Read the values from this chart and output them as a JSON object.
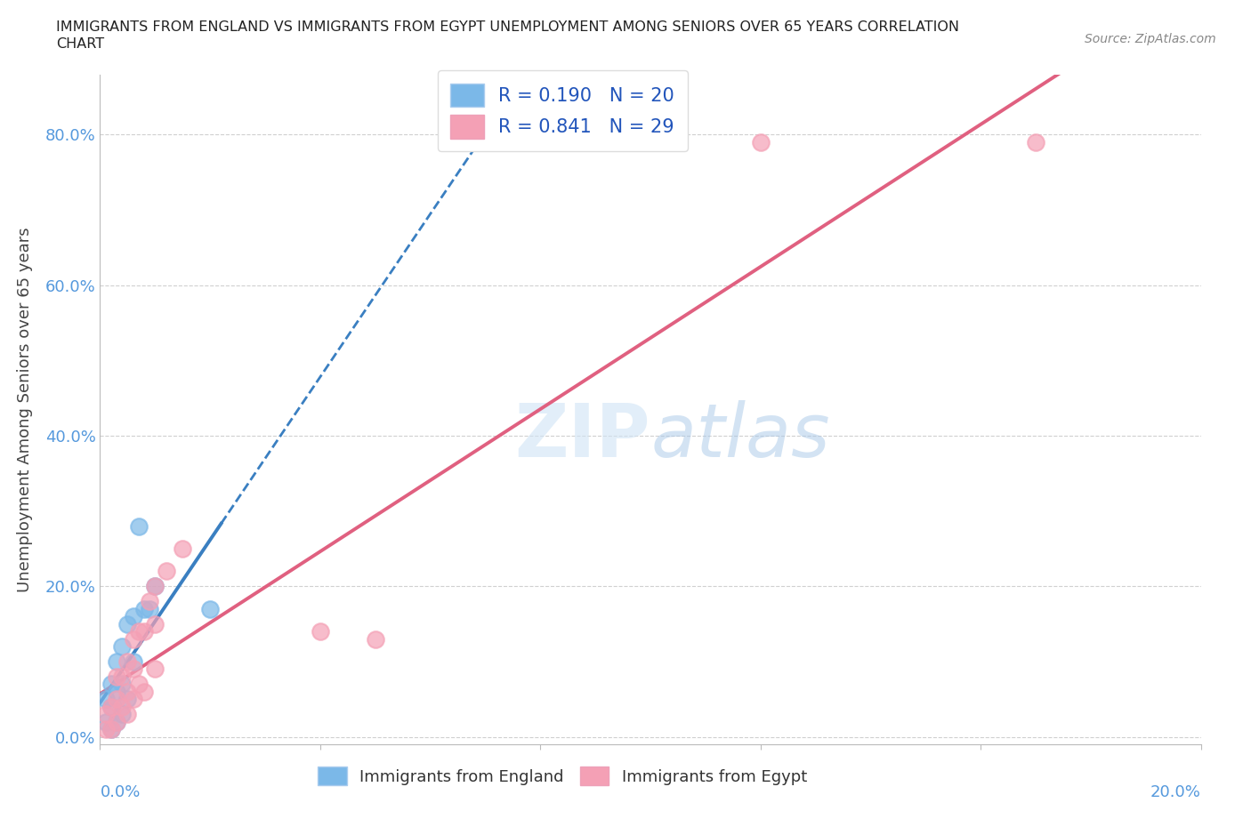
{
  "title_line1": "IMMIGRANTS FROM ENGLAND VS IMMIGRANTS FROM EGYPT UNEMPLOYMENT AMONG SENIORS OVER 65 YEARS CORRELATION",
  "title_line2": "CHART",
  "source": "Source: ZipAtlas.com",
  "ylabel": "Unemployment Among Seniors over 65 years",
  "xlim": [
    0.0,
    0.2
  ],
  "ylim": [
    -0.01,
    0.88
  ],
  "yticks": [
    0.0,
    0.2,
    0.4,
    0.6,
    0.8
  ],
  "ytick_labels": [
    "0.0%",
    "20.0%",
    "40.0%",
    "60.0%",
    "80.0%"
  ],
  "england_color": "#7bb8e8",
  "egypt_color": "#f4a0b5",
  "england_line_color": "#3a7fc1",
  "egypt_line_color": "#e06080",
  "england_R": 0.19,
  "england_N": 20,
  "egypt_R": 0.841,
  "egypt_N": 29,
  "watermark": "ZIPatlas",
  "england_x": [
    0.001,
    0.001,
    0.002,
    0.002,
    0.002,
    0.003,
    0.003,
    0.003,
    0.004,
    0.004,
    0.004,
    0.005,
    0.005,
    0.006,
    0.006,
    0.007,
    0.008,
    0.009,
    0.01,
    0.02
  ],
  "england_y": [
    0.02,
    0.05,
    0.01,
    0.04,
    0.07,
    0.02,
    0.06,
    0.1,
    0.03,
    0.07,
    0.12,
    0.05,
    0.15,
    0.16,
    0.1,
    0.28,
    0.17,
    0.17,
    0.2,
    0.17
  ],
  "egypt_x": [
    0.001,
    0.001,
    0.002,
    0.002,
    0.003,
    0.003,
    0.003,
    0.004,
    0.004,
    0.005,
    0.005,
    0.005,
    0.006,
    0.006,
    0.006,
    0.007,
    0.007,
    0.008,
    0.008,
    0.009,
    0.01,
    0.01,
    0.01,
    0.012,
    0.015,
    0.04,
    0.05,
    0.12,
    0.17
  ],
  "egypt_y": [
    0.01,
    0.03,
    0.01,
    0.04,
    0.02,
    0.05,
    0.08,
    0.04,
    0.08,
    0.03,
    0.06,
    0.1,
    0.05,
    0.09,
    0.13,
    0.07,
    0.14,
    0.06,
    0.14,
    0.18,
    0.09,
    0.15,
    0.2,
    0.22,
    0.25,
    0.14,
    0.13,
    0.79,
    0.79
  ],
  "legend_text_color": "#2255bb",
  "grid_color": "#d0d0d0",
  "axis_label_color": "#5599dd",
  "background_color": "#ffffff",
  "tick_label_color": "#5599dd"
}
